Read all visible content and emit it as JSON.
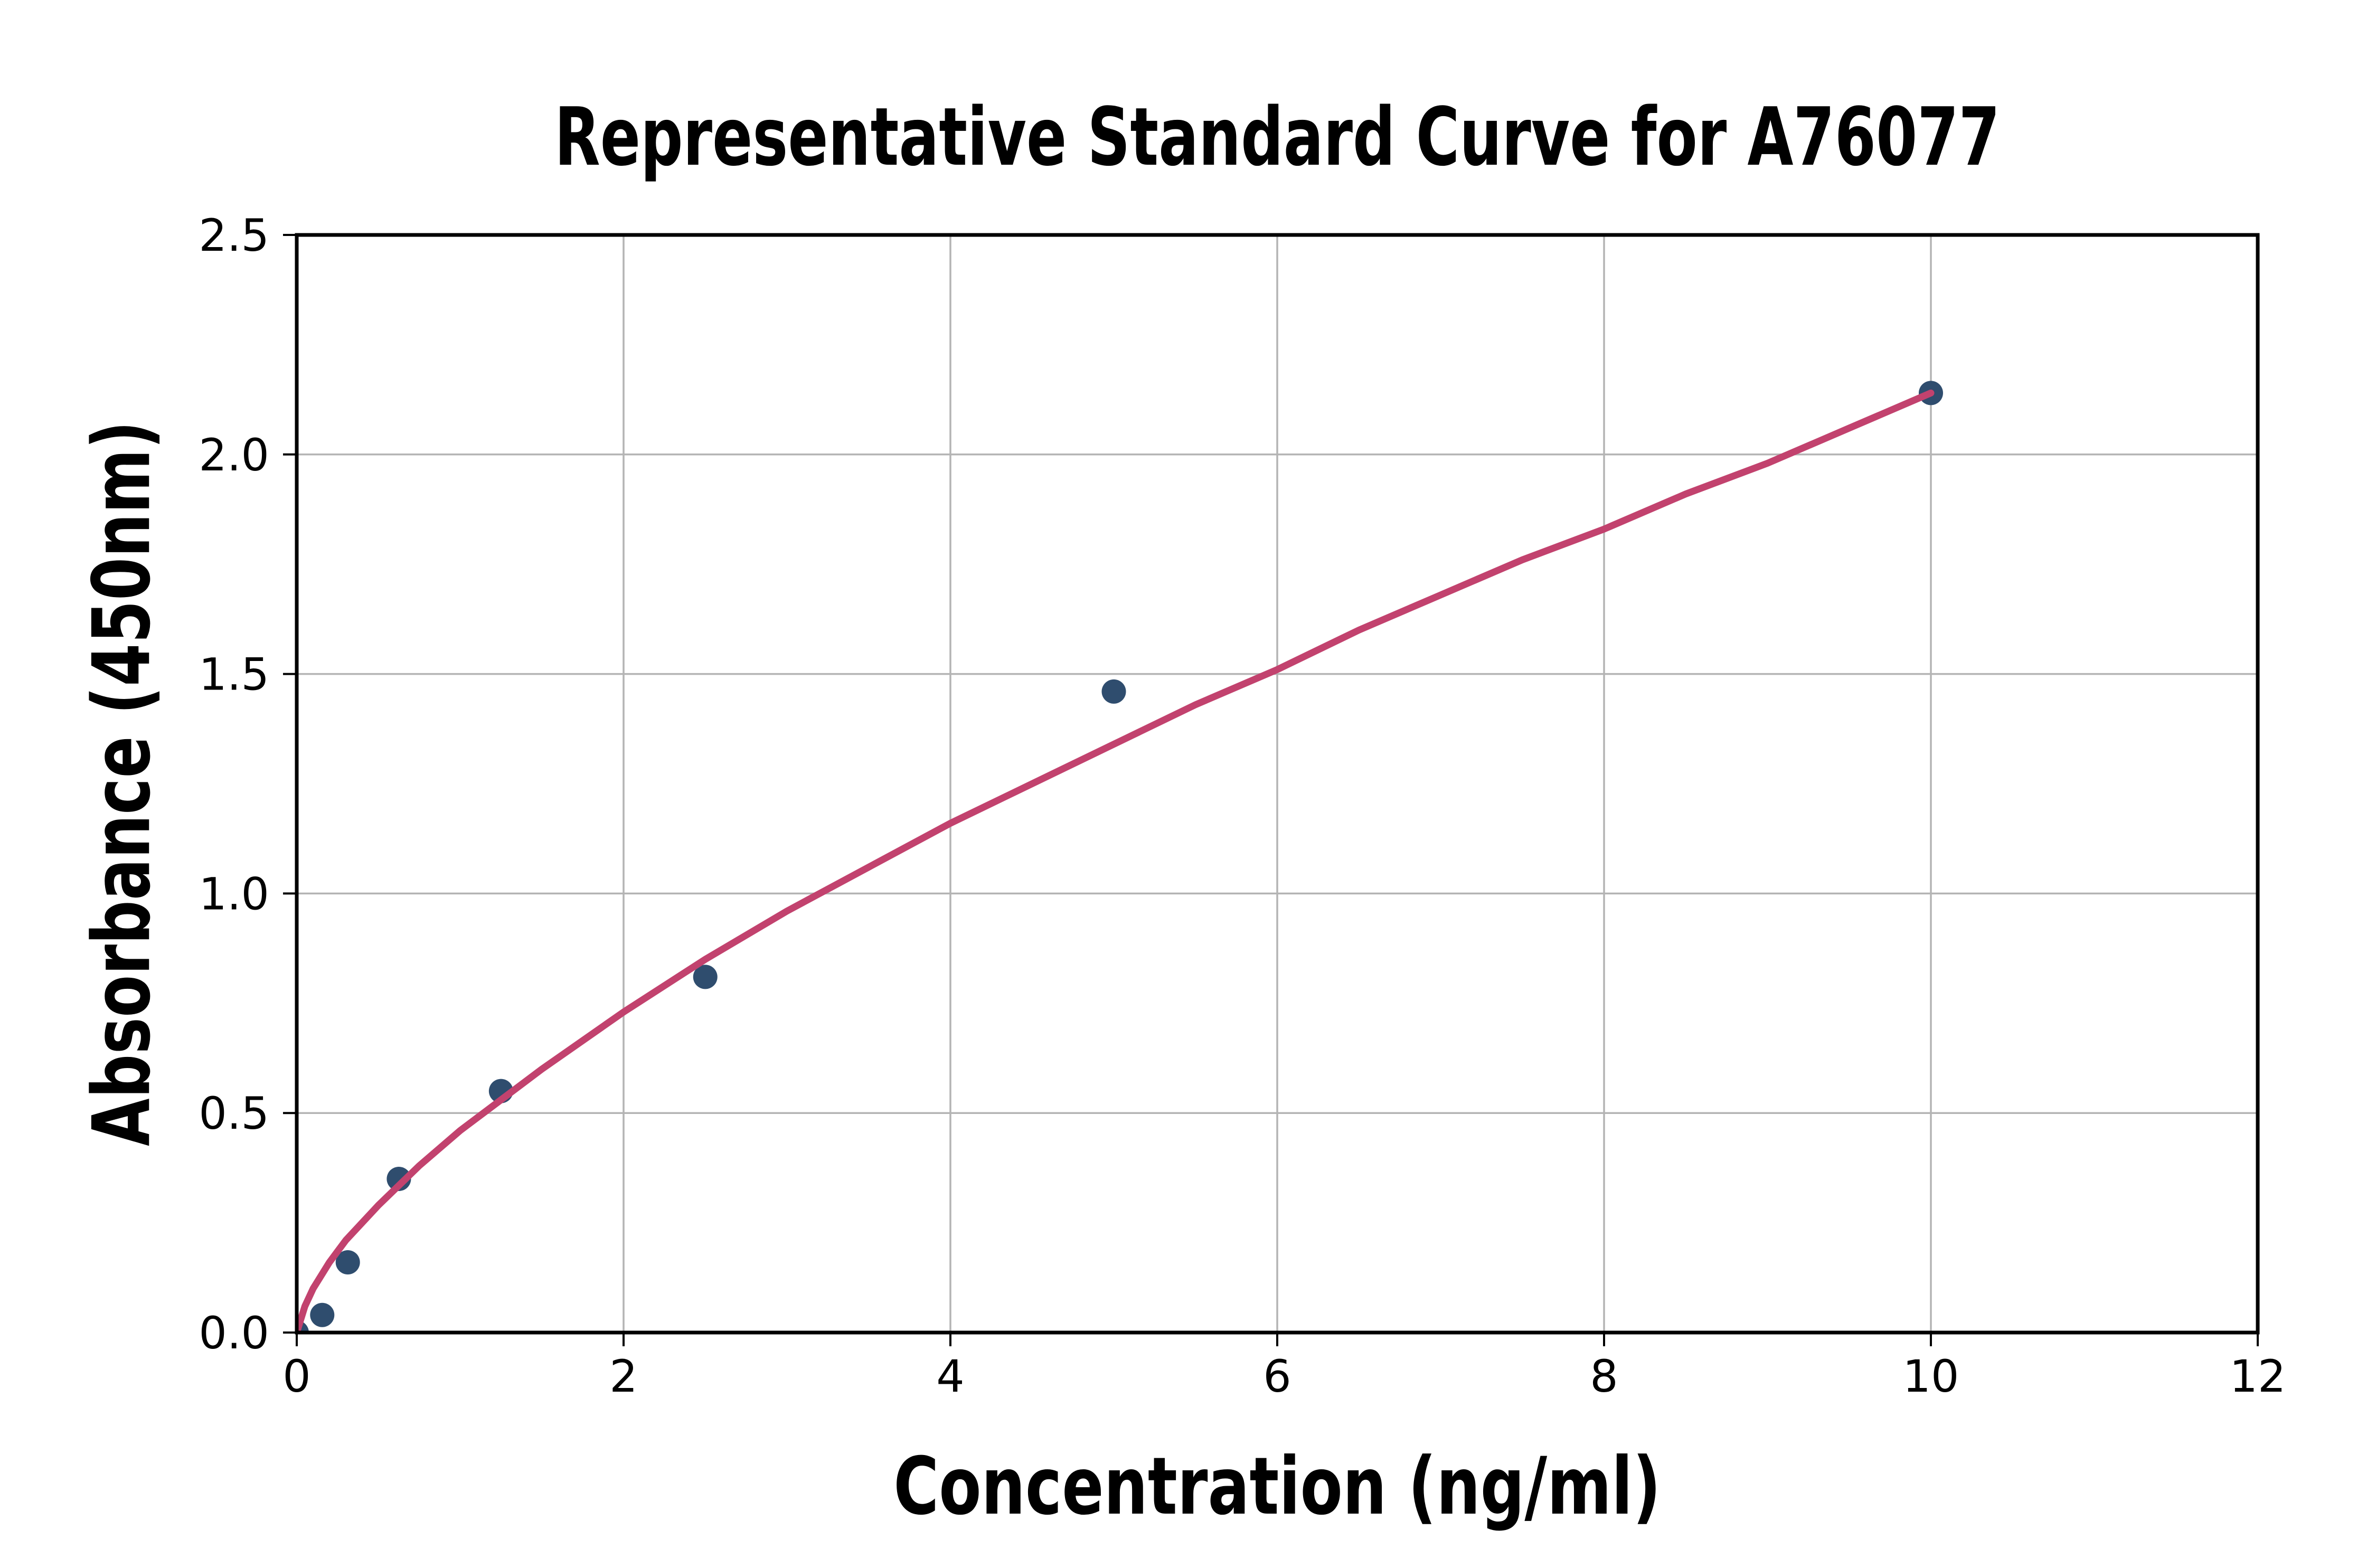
{
  "chart_data": {
    "type": "scatter",
    "title": "Representative Standard Curve for A76077",
    "xlabel": "Concentration (ng/ml)",
    "ylabel": "Absorbance (450nm)",
    "xlim": [
      0,
      12
    ],
    "ylim": [
      0,
      2.5
    ],
    "xticks": [
      0,
      2,
      4,
      6,
      8,
      10,
      12
    ],
    "xtick_labels": [
      "0",
      "2",
      "4",
      "6",
      "8",
      "10",
      "12"
    ],
    "yticks": [
      0.0,
      0.5,
      1.0,
      1.5,
      2.0,
      2.5
    ],
    "ytick_labels": [
      "0.0",
      "0.5",
      "1.0",
      "1.5",
      "2.0",
      "2.5"
    ],
    "grid": true,
    "legend": false,
    "series": [
      {
        "name": "standard-points",
        "type": "scatter",
        "points": [
          [
            0,
            0.0
          ],
          [
            0.156,
            0.04
          ],
          [
            0.3125,
            0.16
          ],
          [
            0.625,
            0.35
          ],
          [
            1.25,
            0.55
          ],
          [
            2.5,
            0.81
          ],
          [
            5,
            1.46
          ],
          [
            10,
            2.14
          ]
        ]
      },
      {
        "name": "fitted-curve",
        "type": "line",
        "points": [
          [
            0,
            0.0
          ],
          [
            0.05,
            0.06
          ],
          [
            0.1,
            0.1
          ],
          [
            0.2,
            0.16
          ],
          [
            0.3,
            0.21
          ],
          [
            0.4,
            0.25
          ],
          [
            0.5,
            0.29
          ],
          [
            0.75,
            0.38
          ],
          [
            1.0,
            0.46
          ],
          [
            1.25,
            0.53
          ],
          [
            1.5,
            0.6
          ],
          [
            2.0,
            0.73
          ],
          [
            2.5,
            0.85
          ],
          [
            3.0,
            0.96
          ],
          [
            3.5,
            1.06
          ],
          [
            4.0,
            1.16
          ],
          [
            4.5,
            1.25
          ],
          [
            5.0,
            1.34
          ],
          [
            5.5,
            1.43
          ],
          [
            6.0,
            1.51
          ],
          [
            6.5,
            1.6
          ],
          [
            7.0,
            1.68
          ],
          [
            7.5,
            1.76
          ],
          [
            8.0,
            1.83
          ],
          [
            8.5,
            1.91
          ],
          [
            9.0,
            1.98
          ],
          [
            9.5,
            2.06
          ],
          [
            10.0,
            2.14
          ]
        ]
      }
    ]
  },
  "colors": {
    "point": "#2F4D6E",
    "curve": "#C2426E",
    "grid": "#B4B4B4",
    "axis": "#000000",
    "background": "#FFFFFF",
    "text": "#000000"
  }
}
